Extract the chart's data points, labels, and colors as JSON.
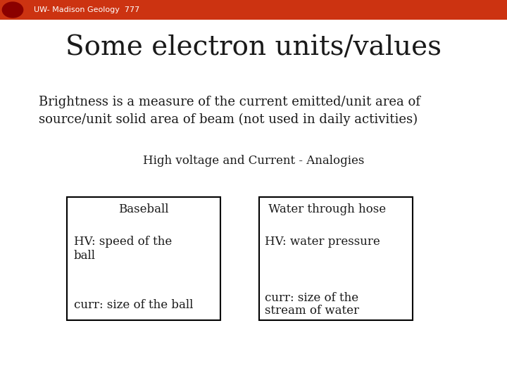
{
  "background_color": "#ffffff",
  "header_bg_color": "#cc3311",
  "header_text": "UW- Madison Geology  777",
  "header_text_color": "#ffffff",
  "header_font_size": 8,
  "title": "Some electron units/values",
  "title_font_size": 28,
  "title_color": "#1a1a1a",
  "body_line1": "Brightness is a measure of the current emitted/unit area of",
  "body_line2": "source/unit solid area of beam (not used in daily activities)",
  "body_font_size": 13,
  "body_color": "#1a1a1a",
  "analogy_header": "High voltage and Current - Analogies",
  "analogy_header_font_size": 12,
  "col1_header": "Baseball",
  "col1_line1": "HV: speed of the",
  "col1_line2": "ball",
  "col1_line3": "curr: size of the ball",
  "col2_header": " Water through hose",
  "col2_line1": "HV: water pressure",
  "col2_line2": "curr: size of the",
  "col2_line3": "stream of water",
  "table_font_size": 12,
  "table_text_color": "#1a1a1a",
  "box_color": "#000000"
}
